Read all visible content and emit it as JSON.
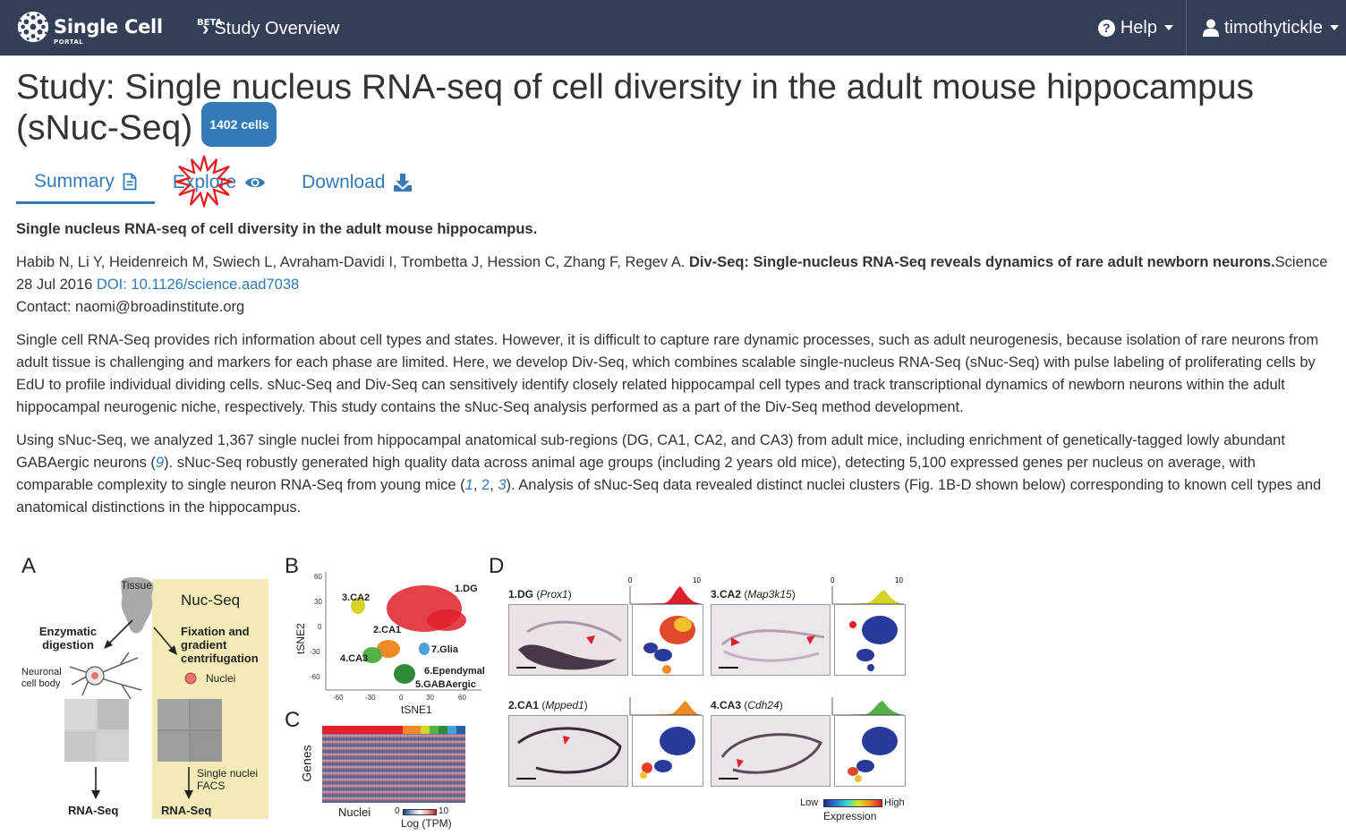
{
  "navbar": {
    "brand": {
      "name": "Single Cell",
      "beta": "BETA",
      "portal": "PORTAL"
    },
    "breadcrumb": "Study Overview",
    "help_label": "Help",
    "user_label": "timothytickle"
  },
  "study": {
    "title": "Study: Single nucleus RNA-seq of cell diversity in the adult mouse hippocampus (sNuc-Seq)",
    "cell_badge": "1402 cells"
  },
  "tabs": [
    {
      "label": "Summary",
      "icon": "file-icon",
      "active": true
    },
    {
      "label": "Explore",
      "icon": "eye-icon",
      "active": false
    },
    {
      "label": "Download",
      "icon": "download-icon",
      "active": false
    }
  ],
  "summary": {
    "heading": "Single nucleus RNA-seq of cell diversity in the adult mouse hippocampus.",
    "authors": "Habib N, Li Y, Heidenreich M, Swiech L, Avraham-Davidi I, Trombetta J, Hession C, Zhang F, Regev A. ",
    "paper_title": "Div-Seq: Single-nucleus RNA-Seq reveals dynamics of rare adult newborn neurons.",
    "journal": "Science  28 Jul 2016 ",
    "doi": "DOI: 10.1126/science.aad7038",
    "contact": "Contact: naomi@broadinstitute.org",
    "paragraph1": "Single cell RNA-Seq provides rich information about cell types and states. However, it is difficult to capture rare dynamic processes, such as adult neurogenesis, because isolation of rare neurons from adult tissue is challenging and markers for each phase are limited. Here, we develop Div-Seq, which combines scalable single-nucleus RNA-Seq (sNuc-Seq) with pulse labeling of proliferating cells by EdU to profile individual dividing cells. sNuc-Seq and Div-Seq can sensitively identify closely related hippocampal cell types and track transcriptional dynamics of newborn neurons within the adult hippocampal neurogenic niche, respectively. This study contains the sNuc-Seq analysis performed as a part of the Div-Seq method development.",
    "p2_a": "Using sNuc-Seq, we analyzed 1,367 single nuclei from hippocampal anatomical sub-regions (DG, CA1, CA2, and CA3) from adult mice, including enrichment of genetically-tagged lowly abundant GABAergic neurons (",
    "ref9": "9",
    "p2_b": "). sNuc-Seq robustly generated high quality data across animal age groups (including 2 years old mice), detecting 5,100 expressed genes per nucleus on average, with comparable complexity to single neuron RNA-Seq from young mice (",
    "ref1": "1",
    "comma1": ", ",
    "ref2": "2",
    "comma2": ", ",
    "ref3": "3",
    "p2_c": "). Analysis of sNuc-Seq data revealed distinct nuclei clusters (Fig. 1B-D shown below) corresponding to known cell types and anatomical distinctions in the hippocampus."
  },
  "figure": {
    "panel_a": {
      "letter": "A",
      "tissue": "Tissue",
      "nucseq": "Nuc-Seq",
      "enzymatic": "Enzymatic digestion",
      "fixation": "Fixation and gradient centrifugation",
      "neuronal": "Neuronal cell body",
      "nuclei": "Nuclei",
      "facs": "Single nuclei FACS",
      "rnaseq_left": "RNA-Seq",
      "rnaseq_right": "RNA-Seq"
    },
    "panel_b": {
      "letter": "B",
      "xlabel": "tSNE1",
      "ylabel": "tSNE2",
      "yticks": [
        "60",
        "30",
        "0",
        "-30",
        "-60"
      ],
      "xticks": [
        "-60",
        "-30",
        "0",
        "30",
        "60"
      ],
      "clusters": [
        "1.DG",
        "3.CA2",
        "2.CA1",
        "7.Glia",
        "4.CA3",
        "6.Ependymal",
        "5.GABAergic"
      ]
    },
    "panel_c": {
      "letter": "C",
      "ylabel": "Genes",
      "xlabel": "Nuclei",
      "scale_min": "0",
      "scale_max": "10",
      "scale_label": "Log (TPM)"
    },
    "panel_d": {
      "letter": "D",
      "cells": [
        {
          "label": "1.DG",
          "gene": "Prox1"
        },
        {
          "label": "3.CA2",
          "gene": "Map3k15"
        },
        {
          "label": "2.CA1",
          "gene": "Mpped1"
        },
        {
          "label": "4.CA3",
          "gene": "Cdh24"
        }
      ],
      "hist_min": "0",
      "hist_max": "10",
      "legend_low": "Low",
      "legend_high": "High",
      "legend_label": "Expression"
    }
  }
}
